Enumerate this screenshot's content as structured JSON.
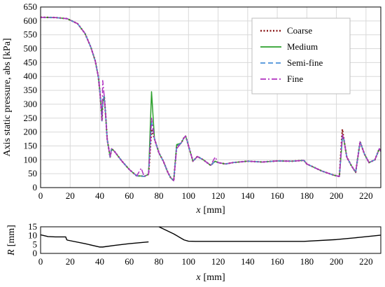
{
  "chart_data": [
    {
      "type": "line",
      "title": "",
      "xlabel_var": "x",
      "xlabel_unit": "[mm]",
      "ylabel": "Axis static pressure, abs [kPa]",
      "xlim": [
        0,
        230
      ],
      "ylim": [
        0,
        650
      ],
      "xticks": [
        "0",
        "20",
        "40",
        "60",
        "80",
        "100",
        "120",
        "140",
        "160",
        "180",
        "200",
        "220"
      ],
      "yticks": [
        "0",
        "50",
        "100",
        "150",
        "200",
        "250",
        "300",
        "350",
        "400",
        "450",
        "500",
        "550",
        "600",
        "650"
      ],
      "grid": true,
      "legend_position": "top-right",
      "x": [
        0,
        10,
        18,
        25,
        30,
        34,
        37,
        39,
        40,
        41,
        41.5,
        42,
        43,
        44,
        45,
        47,
        48,
        50,
        55,
        60,
        65,
        68,
        70,
        73,
        75,
        77,
        80,
        83,
        86,
        88,
        90,
        92,
        95,
        97,
        98,
        99,
        100,
        103,
        106,
        110,
        115,
        118,
        120,
        125,
        130,
        140,
        150,
        160,
        170,
        178,
        180,
        190,
        198,
        202,
        204,
        205,
        207,
        210,
        213,
        216,
        219,
        222,
        226,
        229,
        230
      ],
      "series": [
        {
          "name": "Coarse",
          "color": "#8b1a1a",
          "style": "dotted",
          "values": [
            613,
            612,
            608,
            590,
            555,
            505,
            455,
            400,
            350,
            285,
            240,
            310,
            330,
            260,
            175,
            110,
            140,
            130,
            95,
            65,
            42,
            42,
            40,
            48,
            210,
            175,
            125,
            95,
            55,
            35,
            25,
            150,
            160,
            180,
            185,
            170,
            150,
            95,
            112,
            100,
            80,
            95,
            90,
            85,
            90,
            95,
            92,
            96,
            95,
            98,
            85,
            60,
            45,
            40,
            210,
            175,
            110,
            80,
            55,
            165,
            120,
            90,
            100,
            140,
            130
          ]
        },
        {
          "name": "Medium",
          "color": "#2ca02c",
          "style": "solid",
          "values": [
            613,
            612,
            608,
            590,
            555,
            505,
            455,
            400,
            350,
            285,
            240,
            310,
            330,
            260,
            175,
            110,
            140,
            130,
            95,
            65,
            42,
            42,
            40,
            48,
            345,
            175,
            125,
            95,
            55,
            35,
            25,
            155,
            160,
            180,
            185,
            170,
            150,
            95,
            112,
            100,
            80,
            95,
            90,
            85,
            90,
            95,
            92,
            96,
            95,
            98,
            85,
            60,
            45,
            40,
            175,
            175,
            110,
            80,
            55,
            165,
            120,
            90,
            100,
            140,
            130
          ]
        },
        {
          "name": "Semi-fine",
          "color": "#4a90d9",
          "style": "dashed",
          "values": [
            613,
            612,
            608,
            590,
            555,
            505,
            455,
            400,
            350,
            285,
            240,
            310,
            330,
            260,
            175,
            110,
            140,
            130,
            95,
            65,
            42,
            42,
            40,
            48,
            240,
            175,
            125,
            95,
            55,
            35,
            25,
            150,
            160,
            180,
            185,
            170,
            150,
            95,
            112,
            100,
            80,
            95,
            90,
            85,
            90,
            95,
            92,
            96,
            95,
            98,
            85,
            60,
            45,
            40,
            185,
            175,
            110,
            80,
            55,
            165,
            120,
            90,
            100,
            140,
            130
          ]
        },
        {
          "name": "Fine",
          "color": "#b030c0",
          "style": "dashdot",
          "values": [
            613,
            612,
            608,
            590,
            555,
            505,
            455,
            400,
            350,
            285,
            240,
            385,
            330,
            260,
            175,
            110,
            140,
            130,
            95,
            65,
            42,
            70,
            40,
            48,
            250,
            175,
            125,
            95,
            55,
            35,
            25,
            140,
            160,
            180,
            185,
            170,
            150,
            95,
            112,
            100,
            80,
            110,
            90,
            85,
            90,
            95,
            92,
            96,
            95,
            98,
            85,
            60,
            45,
            40,
            190,
            175,
            110,
            80,
            55,
            165,
            120,
            90,
            100,
            140,
            130
          ]
        }
      ]
    },
    {
      "type": "line",
      "title": "",
      "xlabel_var": "x",
      "xlabel_unit": "[mm]",
      "ylabel_var": "R",
      "ylabel_unit": "[mm]",
      "xlim": [
        0,
        230
      ],
      "ylim": [
        0,
        15
      ],
      "xticks": [
        "0",
        "20",
        "40",
        "60",
        "80",
        "100",
        "120",
        "140",
        "160",
        "180",
        "200",
        "220"
      ],
      "yticks": [
        "0",
        "5",
        "10",
        "15"
      ],
      "grid": false,
      "segments": [
        {
          "x": [
            0,
            5,
            10,
            17,
            17.5,
            18,
            30,
            40,
            42,
            50,
            60,
            73
          ],
          "values": [
            10.5,
            9.5,
            9.3,
            9.3,
            8,
            7.5,
            5.5,
            3.6,
            3.6,
            4.5,
            5.5,
            6.5
          ]
        },
        {
          "x": [
            80,
            90,
            97,
            100,
            105,
            130,
            178,
            200,
            215,
            230
          ],
          "values": [
            15,
            11,
            7.6,
            6.9,
            6.8,
            6.8,
            6.8,
            7.8,
            9,
            10.3
          ]
        }
      ]
    }
  ]
}
